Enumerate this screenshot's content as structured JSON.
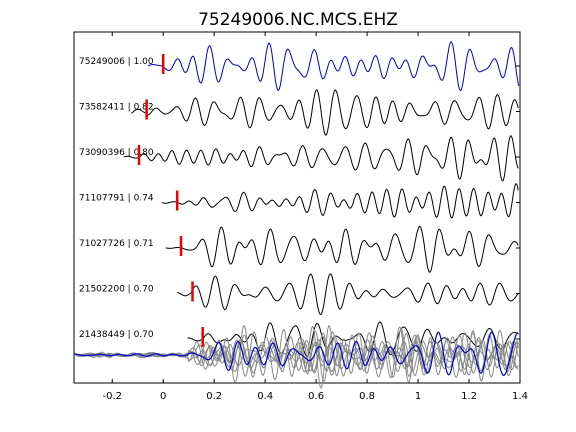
{
  "chart_data": {
    "type": "line",
    "title": "75249006.NC.MCS.EHZ",
    "xlabel": "",
    "ylabel": "",
    "xlim": [
      -0.35,
      1.4
    ],
    "x_ticks": [
      "-0.2",
      "0",
      "0.2",
      "0.4",
      "0.6",
      "0.8",
      "1",
      "1.2",
      "1.4"
    ],
    "x_tick_values": [
      -0.2,
      0,
      0.2,
      0.4,
      0.6,
      0.8,
      1.0,
      1.2,
      1.4
    ],
    "grid": false,
    "legend": "none",
    "colors": {
      "reference": "#0000cc",
      "trace": "#000000",
      "pick": "#ee0000",
      "stack": "#888888"
    },
    "traces": [
      {
        "label": "75249006 | 1.00",
        "pick_time": 0.0,
        "color": "reference"
      },
      {
        "label": "73582411 | 0.82",
        "pick_time": -0.065,
        "color": "trace"
      },
      {
        "label": "73090396 | 0.80",
        "pick_time": -0.095,
        "color": "trace"
      },
      {
        "label": "71107791 | 0.74",
        "pick_time": 0.055,
        "color": "trace"
      },
      {
        "label": "71027726 | 0.71",
        "pick_time": 0.07,
        "color": "trace"
      },
      {
        "label": "21502200 | 0.70",
        "pick_time": 0.115,
        "color": "trace"
      },
      {
        "label": "21438449 | 0.70",
        "pick_time": 0.155,
        "color": "trace"
      }
    ],
    "stack": {
      "label": "",
      "overlay_count": 7
    }
  }
}
